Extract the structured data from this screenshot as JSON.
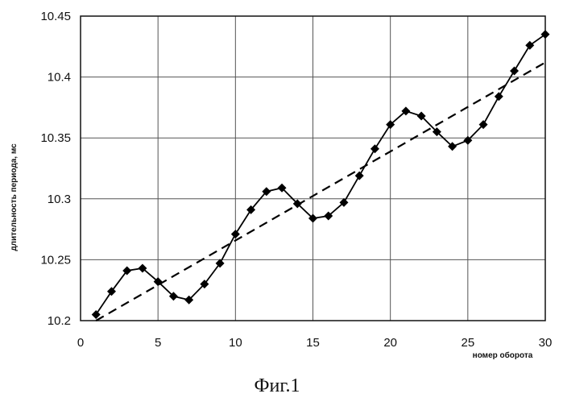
{
  "chart_data": {
    "type": "line",
    "title": "",
    "xlabel": "номер оборота",
    "ylabel": "длительность периода, мс",
    "xlim": [
      0,
      30
    ],
    "ylim": [
      10.2,
      10.45
    ],
    "xticks": [
      0,
      5,
      10,
      15,
      20,
      25,
      30
    ],
    "xtick_labels": [
      "0",
      "5",
      "10",
      "15",
      "20",
      "25",
      "30"
    ],
    "yticks": [
      10.2,
      10.25,
      10.3,
      10.35,
      10.4,
      10.45
    ],
    "ytick_labels": [
      "10.2",
      "10.25",
      "10.3",
      "10.35",
      "10.4",
      "10.45"
    ],
    "grid": true,
    "legend": "none",
    "series": [
      {
        "style": "solid",
        "marker": "diamond",
        "color": "#000000",
        "x": [
          1,
          2,
          3,
          4,
          5,
          6,
          7,
          8,
          9,
          10,
          11,
          12,
          13,
          14,
          15,
          16,
          17,
          18,
          19,
          20,
          21,
          22,
          23,
          24,
          25,
          26,
          27,
          28,
          29,
          30
        ],
        "values": [
          10.205,
          10.224,
          10.241,
          10.243,
          10.232,
          10.22,
          10.217,
          10.23,
          10.247,
          10.271,
          10.291,
          10.306,
          10.309,
          10.296,
          10.284,
          10.286,
          10.297,
          10.319,
          10.341,
          10.361,
          10.372,
          10.368,
          10.355,
          10.343,
          10.348,
          10.361,
          10.384,
          10.405,
          10.426,
          10.435
        ]
      },
      {
        "style": "dashed",
        "marker": "none",
        "color": "#000000",
        "x": [
          1,
          30
        ],
        "values": [
          10.2,
          10.412
        ]
      }
    ]
  },
  "caption": "Фиг.1"
}
